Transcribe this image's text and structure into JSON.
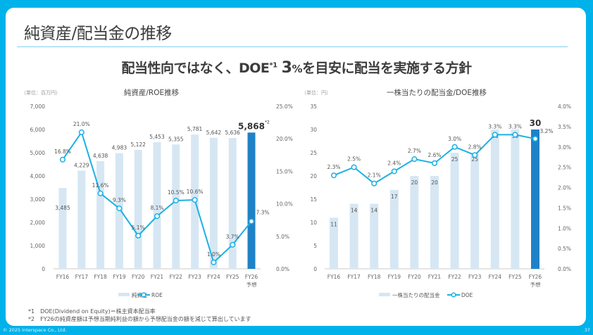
{
  "header": {
    "title": "純資産/配当金の推移",
    "subtitle_pre": "配当性向ではなく、DOE",
    "subtitle_sup": "*1",
    "subtitle_num": "3",
    "subtitle_pct": "%",
    "subtitle_post": "を目安に配当を実施する方針"
  },
  "notes": [
    "*1　DOE(Dividend on Equity)＝株主資本配当率",
    "*2　FY26の純資産額は予想当期純利益の額から予想配当金の額を減じて算出しています"
  ],
  "footer": {
    "copyright": "© 2025 Interspace Co., Ltd.",
    "page": "37"
  },
  "colors": {
    "bar": "#d6e7f3",
    "bar_highlight": "#1f82c7",
    "line": "#1cb0e4",
    "accent": "#00b2ea"
  },
  "chart_data": [
    {
      "type": "bar+line",
      "title": "純資産/ROE推移",
      "unit_label": "（単位：百万円）",
      "categories": [
        "FY16",
        "FY17",
        "FY18",
        "FY19",
        "FY20",
        "FY21",
        "FY22",
        "FY23",
        "FY24",
        "FY25",
        "FY26"
      ],
      "category_sub": [
        "",
        "",
        "",
        "",
        "",
        "",
        "",
        "",
        "",
        "",
        "予想"
      ],
      "bar_series": {
        "name": "純資産",
        "values": [
          3485,
          4229,
          4638,
          4983,
          5122,
          5453,
          5355,
          5781,
          5642,
          5636,
          5868
        ],
        "labels": [
          "3,485",
          "4,229",
          "4,638",
          "4,983",
          "5,122",
          "5,453",
          "5,355",
          "5,781",
          "5,642",
          "5,636",
          "5,868"
        ]
      },
      "line_series": {
        "name": "ROE",
        "values": [
          16.8,
          21.0,
          11.6,
          9.3,
          5.1,
          8.1,
          10.5,
          10.6,
          1.0,
          3.7,
          7.3
        ],
        "labels": [
          "16.8%",
          "21.0%",
          "11.6%",
          "9.3%",
          "5.1%",
          "8.1%",
          "10.5%",
          "10.6%",
          "1.0%",
          "3.7%",
          "7.3%"
        ]
      },
      "highlight_note": "*2",
      "ylim": [
        0,
        7000
      ],
      "yticks": [
        "0",
        "1,000",
        "2,000",
        "3,000",
        "4,000",
        "5,000",
        "6,000",
        "7,000"
      ],
      "y2lim": [
        0,
        25
      ],
      "y2ticks": [
        "0.0%",
        "5.0%",
        "10.0%",
        "15.0%",
        "20.0%",
        "25.0%"
      ],
      "legend": "bottom"
    },
    {
      "type": "bar+line",
      "title": "一株当たりの配当金/DOE推移",
      "unit_label": "（単位：円）",
      "categories": [
        "FY16",
        "FY17",
        "FY18",
        "FY19",
        "FY20",
        "FY21",
        "FY22",
        "FY23",
        "FY24",
        "FY25",
        "FY26"
      ],
      "category_sub": [
        "",
        "",
        "",
        "",
        "",
        "",
        "",
        "",
        "",
        "",
        "予想"
      ],
      "bar_series": {
        "name": "一株当たりの配当金",
        "values": [
          11,
          14,
          14,
          17,
          20,
          20,
          25,
          25,
          30,
          30,
          30
        ],
        "labels": [
          "11",
          "14",
          "14",
          "17",
          "20",
          "20",
          "25",
          "25",
          "30",
          "30",
          "30"
        ]
      },
      "line_series": {
        "name": "DOE",
        "values": [
          2.3,
          2.5,
          2.1,
          2.4,
          2.7,
          2.6,
          3.0,
          2.8,
          3.3,
          3.3,
          3.2
        ],
        "labels": [
          "2.3%",
          "2.5%",
          "2.1%",
          "2.4%",
          "2.7%",
          "2.6%",
          "3.0%",
          "2.8%",
          "3.3%",
          "3.3%",
          "3.2%"
        ]
      },
      "highlight_note": "",
      "ylim": [
        0,
        35
      ],
      "yticks": [
        "0",
        "5",
        "10",
        "15",
        "20",
        "25",
        "30",
        "35"
      ],
      "y2lim": [
        0,
        4
      ],
      "y2ticks": [
        "0.0%",
        "0.5%",
        "1.0%",
        "1.5%",
        "2.0%",
        "2.5%",
        "3.0%",
        "3.5%",
        "4.0%"
      ],
      "legend": "bottom"
    }
  ]
}
